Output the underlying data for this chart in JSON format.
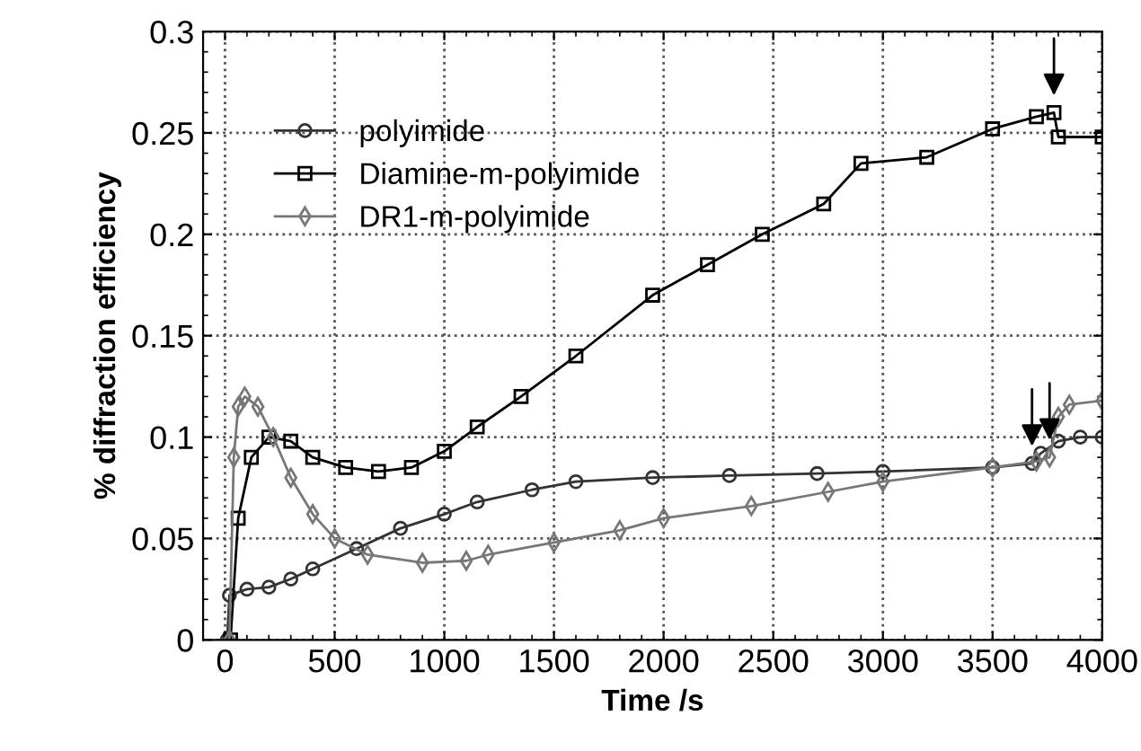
{
  "chart_data": {
    "type": "line",
    "xlabel": "Time /s",
    "ylabel": "% diffraction efficiency",
    "xlim": [
      -100,
      4000
    ],
    "xticks": [
      0,
      500,
      1000,
      1500,
      2000,
      2500,
      3000,
      3500,
      4000
    ],
    "ylim": [
      0,
      0.3
    ],
    "yticks": [
      0,
      0.05,
      0.1,
      0.15,
      0.2,
      0.25,
      0.3
    ],
    "grid": true,
    "legend": "top left",
    "series": [
      {
        "name": "polyimide",
        "color": "#333333",
        "marker": "circle",
        "x": [
          10,
          20,
          100,
          200,
          300,
          400,
          600,
          800,
          1000,
          1150,
          1400,
          1600,
          1950,
          2300,
          2700,
          3000,
          3500,
          3680,
          3720,
          3800,
          3900,
          4000
        ],
        "values": [
          0,
          0.022,
          0.025,
          0.026,
          0.03,
          0.035,
          0.045,
          0.055,
          0.062,
          0.068,
          0.074,
          0.078,
          0.08,
          0.081,
          0.082,
          0.083,
          0.085,
          0.087,
          0.092,
          0.098,
          0.1,
          0.1
        ]
      },
      {
        "name": "Diamine-m-polyimide",
        "color": "#000000",
        "marker": "square",
        "x": [
          25,
          60,
          120,
          200,
          300,
          400,
          550,
          700,
          850,
          1000,
          1150,
          1350,
          1600,
          1950,
          2200,
          2450,
          2730,
          2900,
          3200,
          3500,
          3700,
          3780,
          3800,
          4000
        ],
        "values": [
          0,
          0.06,
          0.09,
          0.1,
          0.098,
          0.09,
          0.085,
          0.083,
          0.085,
          0.093,
          0.105,
          0.12,
          0.14,
          0.17,
          0.185,
          0.2,
          0.215,
          0.235,
          0.238,
          0.252,
          0.258,
          0.26,
          0.248,
          0.248
        ]
      },
      {
        "name": "DR1-m-polyimide",
        "color": "#777777",
        "marker": "diamond",
        "x": [
          20,
          40,
          60,
          90,
          150,
          220,
          300,
          400,
          500,
          650,
          900,
          1100,
          1200,
          1500,
          1800,
          2000,
          2400,
          2750,
          3000,
          3500,
          3700,
          3760,
          3800,
          3850,
          4000
        ],
        "values": [
          0,
          0.09,
          0.115,
          0.12,
          0.115,
          0.1,
          0.08,
          0.062,
          0.05,
          0.042,
          0.038,
          0.039,
          0.042,
          0.048,
          0.054,
          0.06,
          0.066,
          0.073,
          0.078,
          0.085,
          0.088,
          0.09,
          0.11,
          0.116,
          0.118
        ]
      }
    ]
  }
}
